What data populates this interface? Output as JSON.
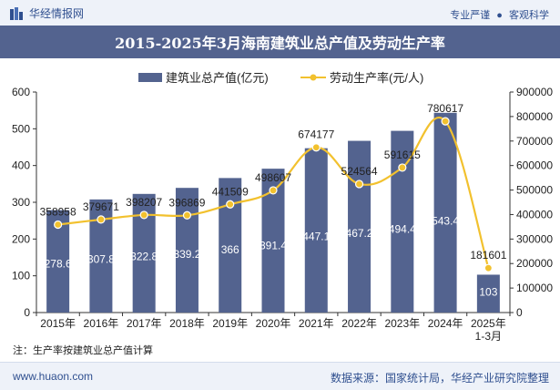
{
  "header": {
    "brand": "华经情报网",
    "tagline_left": "专业严谨",
    "tagline_right": "客观科学"
  },
  "chart_data": {
    "type": "bar",
    "title": "2015-2025年3月海南建筑业总产值及劳动生产率",
    "categories": [
      "2015年",
      "2016年",
      "2017年",
      "2018年",
      "2019年",
      "2020年",
      "2021年",
      "2022年",
      "2023年",
      "2024年",
      "2025年 1-3月"
    ],
    "series": [
      {
        "name": "建筑业总产值(亿元)",
        "type": "bar",
        "axis": "left",
        "color": "#53638f",
        "values": [
          278.6,
          307.8,
          322.8,
          339.2,
          366,
          391.4,
          447.1,
          467.2,
          494.4,
          543.4,
          103
        ]
      },
      {
        "name": "劳动生产率(元/人)",
        "type": "line",
        "axis": "right",
        "color": "#f2c12e",
        "values": [
          358958,
          379671,
          398207,
          396869,
          441509,
          498607,
          674177,
          524564,
          591615,
          780617,
          181601
        ]
      }
    ],
    "ylim_left": [
      0,
      600
    ],
    "yticks_left": [
      0,
      100,
      200,
      300,
      400,
      500,
      600
    ],
    "ylim_right": [
      0,
      900000
    ],
    "yticks_right": [
      0,
      100000,
      200000,
      300000,
      400000,
      500000,
      600000,
      700000,
      800000,
      900000
    ],
    "legend": "top-center",
    "grid": false
  },
  "footnote": "注：生产率按建筑业总产值计算",
  "footer": {
    "site": "www.huaon.com",
    "source": "数据来源：国家统计局，华经产业研究院整理"
  },
  "colors": {
    "title_bg": "#53638f",
    "bar": "#53638f",
    "line": "#f2c12e",
    "accent_text": "#2f4f8f"
  }
}
